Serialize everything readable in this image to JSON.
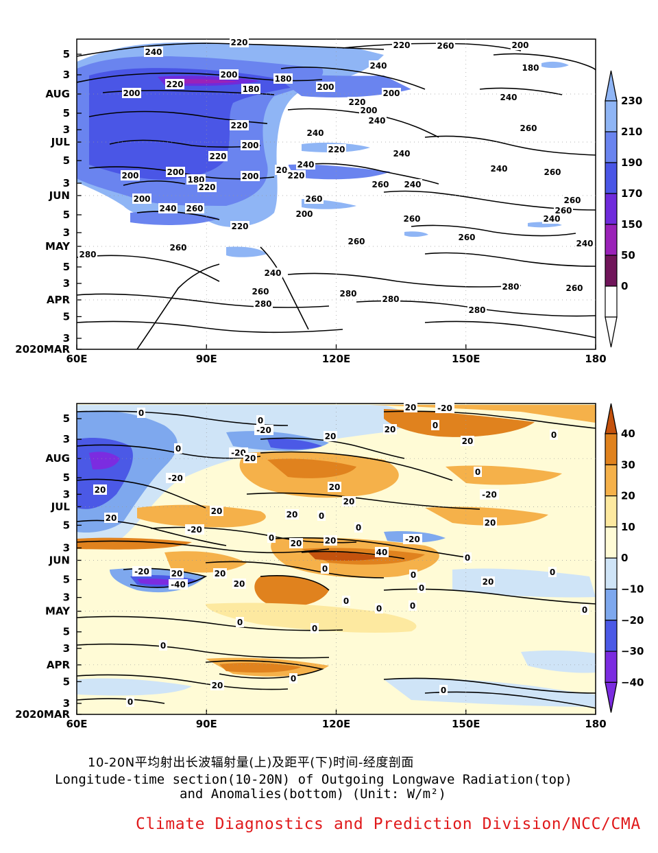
{
  "chart_data": [
    {
      "type": "heatmap",
      "title": "",
      "x_label": "",
      "y_label": "",
      "x_ticks": [
        "60E",
        "90E",
        "120E",
        "150E",
        "180"
      ],
      "x_values": [
        60,
        90,
        120,
        150,
        180
      ],
      "y_ticks": [
        "2020MAR",
        "3",
        "5",
        "APR",
        "3",
        "5",
        "MAY",
        "3",
        "5",
        "JUN",
        "3",
        "5",
        "JUL",
        "3",
        "5",
        "AUG",
        "3",
        "5"
      ],
      "colorbar": {
        "levels": [
          "230",
          "210",
          "190",
          "170",
          "150",
          "50",
          "0"
        ],
        "colors": [
          "#8fb5f5",
          "#6a84ef",
          "#4a56e6",
          "#6f2bdb",
          "#9a22b8",
          "#70155a",
          "#ffffff"
        ]
      },
      "contour_labels": [
        "220",
        "220",
        "240",
        "260",
        "200",
        "240",
        "180",
        "200",
        "180",
        "220",
        "200",
        "180",
        "200",
        "200",
        "240",
        "220",
        "200",
        "220",
        "240",
        "260",
        "200",
        "240",
        "220",
        "240",
        "200",
        "200",
        "20",
        "220",
        "200",
        "180",
        "220",
        "240",
        "220",
        "260",
        "260",
        "240",
        "200",
        "240",
        "260",
        "260",
        "260",
        "220",
        "200",
        "260",
        "240",
        "240",
        "260",
        "260",
        "260",
        "240",
        "280",
        "260",
        "240",
        "260",
        "280",
        "280",
        "280",
        "260",
        "280",
        "280"
      ],
      "cells": {
        "contains": "Outgoing Longwave Radiation field, longitude 60E-180 vs time 2020 MAR-AUG",
        "unit": "W/m²"
      }
    },
    {
      "type": "heatmap",
      "title": "",
      "x_label": "",
      "y_label": "",
      "x_ticks": [
        "60E",
        "90E",
        "120E",
        "150E",
        "180"
      ],
      "x_values": [
        60,
        90,
        120,
        150,
        180
      ],
      "y_ticks": [
        "2020MAR",
        "3",
        "5",
        "APR",
        "3",
        "5",
        "MAY",
        "3",
        "5",
        "JUN",
        "3",
        "5",
        "JUL",
        "3",
        "5",
        "AUG",
        "3",
        "5"
      ],
      "colorbar": {
        "levels": [
          "40",
          "30",
          "20",
          "10",
          "0",
          "−10",
          "−20",
          "−30",
          "−40"
        ],
        "colors": [
          "#c4520d",
          "#e0821e",
          "#f5b14a",
          "#fde9a0",
          "#fffbd6",
          "#cfe4f7",
          "#7ea8ee",
          "#4b59e6",
          "#7b2ce0"
        ]
      },
      "contour_labels": [
        "0",
        "20",
        "-20",
        "0",
        "-20",
        "20",
        "0",
        "20",
        "-20",
        "0",
        "20",
        "0",
        "20",
        "0",
        "-20",
        "20",
        "20",
        "20",
        "-20",
        "20",
        "20",
        "20",
        "0",
        "20",
        "-20",
        "0",
        "20",
        "0",
        "20",
        "-20",
        "0",
        "40",
        "0",
        "0",
        "-20",
        "20",
        "20",
        "0",
        "-40",
        "20",
        "20",
        "0",
        "0",
        "0",
        "0",
        "0",
        "0",
        "0",
        "0",
        "0",
        "20",
        "0",
        "0",
        "0"
      ],
      "cells": {
        "contains": "OLR anomaly field, longitude 60E-180 vs time 2020 MAR-AUG",
        "unit": "W/m²"
      }
    }
  ],
  "captions": {
    "line_cn": "10-20N平均射出长波辐射量(上)及距平(下)时间-经度剖面",
    "line_en1": "Longitude-time section(10-20N) of Outgoing Longwave Radiation(top)",
    "line_en2": "and Anomalies(bottom) (Unit: W/m²)",
    "organization": "Climate Diagnostics and Prediction Division/NCC/CMA"
  },
  "colors": {
    "organization_text": "#e0191b",
    "frame": "#000000"
  }
}
